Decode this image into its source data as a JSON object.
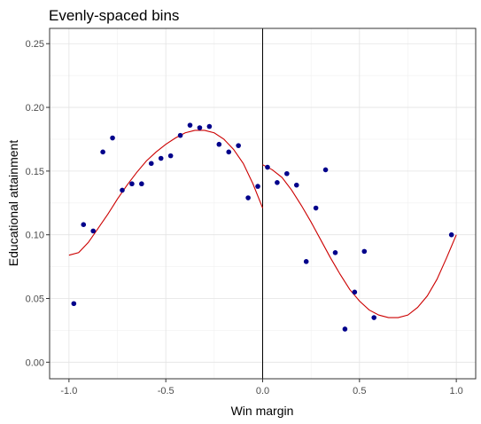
{
  "chart_data": {
    "type": "scatter",
    "title": "Evenly-spaced bins",
    "xlabel": "Win margin",
    "ylabel": "Educational attainment",
    "xlim": [
      -1.1,
      1.1
    ],
    "ylim": [
      -0.013,
      0.262
    ],
    "x_ticks": [
      -1.0,
      -0.5,
      0.0,
      0.5,
      1.0
    ],
    "x_tick_labels": [
      "-1.0",
      "-0.5",
      "0.0",
      "0.5",
      "1.0"
    ],
    "y_ticks": [
      0.0,
      0.05,
      0.1,
      0.15,
      0.2,
      0.25
    ],
    "y_tick_labels": [
      "0.00",
      "0.05",
      "0.10",
      "0.15",
      "0.20",
      "0.25"
    ],
    "grid": true,
    "cutoff_line_x": 0.0,
    "point_color": "#00008b",
    "fit_color": "#cc0000",
    "points": [
      {
        "x": -0.975,
        "y": 0.046
      },
      {
        "x": -0.925,
        "y": 0.108
      },
      {
        "x": -0.875,
        "y": 0.103
      },
      {
        "x": -0.825,
        "y": 0.165
      },
      {
        "x": -0.775,
        "y": 0.176
      },
      {
        "x": -0.725,
        "y": 0.135
      },
      {
        "x": -0.675,
        "y": 0.14
      },
      {
        "x": -0.625,
        "y": 0.14
      },
      {
        "x": -0.575,
        "y": 0.156
      },
      {
        "x": -0.525,
        "y": 0.16
      },
      {
        "x": -0.475,
        "y": 0.162
      },
      {
        "x": -0.425,
        "y": 0.178
      },
      {
        "x": -0.375,
        "y": 0.186
      },
      {
        "x": -0.325,
        "y": 0.184
      },
      {
        "x": -0.275,
        "y": 0.185
      },
      {
        "x": -0.225,
        "y": 0.171
      },
      {
        "x": -0.175,
        "y": 0.165
      },
      {
        "x": -0.125,
        "y": 0.17
      },
      {
        "x": -0.075,
        "y": 0.129
      },
      {
        "x": -0.025,
        "y": 0.138
      },
      {
        "x": 0.025,
        "y": 0.153
      },
      {
        "x": 0.075,
        "y": 0.141
      },
      {
        "x": 0.125,
        "y": 0.148
      },
      {
        "x": 0.175,
        "y": 0.139
      },
      {
        "x": 0.225,
        "y": 0.079
      },
      {
        "x": 0.275,
        "y": 0.121
      },
      {
        "x": 0.325,
        "y": 0.151
      },
      {
        "x": 0.375,
        "y": 0.086
      },
      {
        "x": 0.425,
        "y": 0.026
      },
      {
        "x": 0.475,
        "y": 0.055
      },
      {
        "x": 0.525,
        "y": 0.087
      },
      {
        "x": 0.575,
        "y": 0.035
      },
      {
        "x": 0.975,
        "y": 0.1
      }
    ],
    "fit_left": [
      {
        "x": -1.0,
        "y": 0.084
      },
      {
        "x": -0.95,
        "y": 0.086
      },
      {
        "x": -0.9,
        "y": 0.094
      },
      {
        "x": -0.85,
        "y": 0.105
      },
      {
        "x": -0.8,
        "y": 0.116
      },
      {
        "x": -0.75,
        "y": 0.128
      },
      {
        "x": -0.7,
        "y": 0.139
      },
      {
        "x": -0.65,
        "y": 0.149
      },
      {
        "x": -0.6,
        "y": 0.158
      },
      {
        "x": -0.55,
        "y": 0.165
      },
      {
        "x": -0.5,
        "y": 0.171
      },
      {
        "x": -0.45,
        "y": 0.176
      },
      {
        "x": -0.4,
        "y": 0.18
      },
      {
        "x": -0.35,
        "y": 0.182
      },
      {
        "x": -0.3,
        "y": 0.182
      },
      {
        "x": -0.25,
        "y": 0.18
      },
      {
        "x": -0.2,
        "y": 0.175
      },
      {
        "x": -0.15,
        "y": 0.167
      },
      {
        "x": -0.1,
        "y": 0.156
      },
      {
        "x": -0.05,
        "y": 0.14
      },
      {
        "x": 0.0,
        "y": 0.121
      }
    ],
    "fit_right": [
      {
        "x": 0.0,
        "y": 0.155
      },
      {
        "x": 0.05,
        "y": 0.151
      },
      {
        "x": 0.1,
        "y": 0.145
      },
      {
        "x": 0.15,
        "y": 0.135
      },
      {
        "x": 0.2,
        "y": 0.123
      },
      {
        "x": 0.25,
        "y": 0.11
      },
      {
        "x": 0.3,
        "y": 0.096
      },
      {
        "x": 0.35,
        "y": 0.082
      },
      {
        "x": 0.4,
        "y": 0.069
      },
      {
        "x": 0.45,
        "y": 0.057
      },
      {
        "x": 0.5,
        "y": 0.048
      },
      {
        "x": 0.55,
        "y": 0.041
      },
      {
        "x": 0.6,
        "y": 0.037
      },
      {
        "x": 0.65,
        "y": 0.035
      },
      {
        "x": 0.7,
        "y": 0.035
      },
      {
        "x": 0.75,
        "y": 0.037
      },
      {
        "x": 0.8,
        "y": 0.043
      },
      {
        "x": 0.85,
        "y": 0.052
      },
      {
        "x": 0.9,
        "y": 0.065
      },
      {
        "x": 0.95,
        "y": 0.082
      },
      {
        "x": 1.0,
        "y": 0.1
      }
    ]
  }
}
